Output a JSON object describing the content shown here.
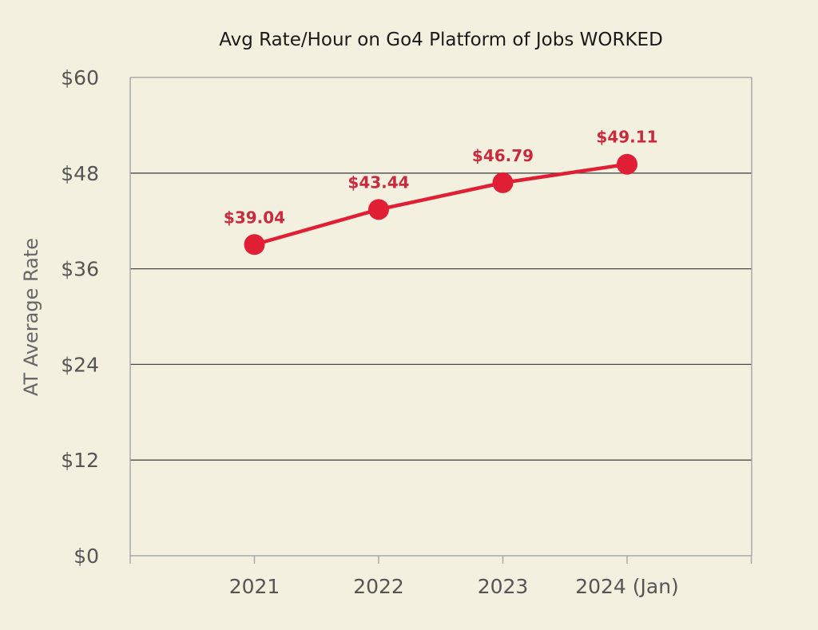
{
  "chart_data": {
    "type": "line",
    "title": "Avg Rate/Hour on Go4 Platform of Jobs WORKED",
    "xlabel": "",
    "ylabel": "AT Average Rate",
    "categories": [
      "2021",
      "2022",
      "2023",
      "2024 (Jan)"
    ],
    "series": [
      {
        "values": [
          39.04,
          43.44,
          46.79,
          49.11
        ],
        "data_labels": [
          "$39.04",
          "$43.44",
          "$46.79",
          "$49.11"
        ]
      }
    ],
    "ylim": [
      0,
      60
    ],
    "y_ticks": [
      0,
      12,
      24,
      36,
      48,
      60
    ],
    "y_tick_labels": [
      "$0",
      "$12",
      "$24",
      "$36",
      "$48",
      "$60"
    ],
    "grid": true,
    "legend": "none"
  },
  "colors": {
    "background": "#f3f0df",
    "series_line": "#e01e34",
    "data_label": "#c92a3e",
    "gridline": "#4a4a4a",
    "axis_frame": "#aaaaaa"
  }
}
